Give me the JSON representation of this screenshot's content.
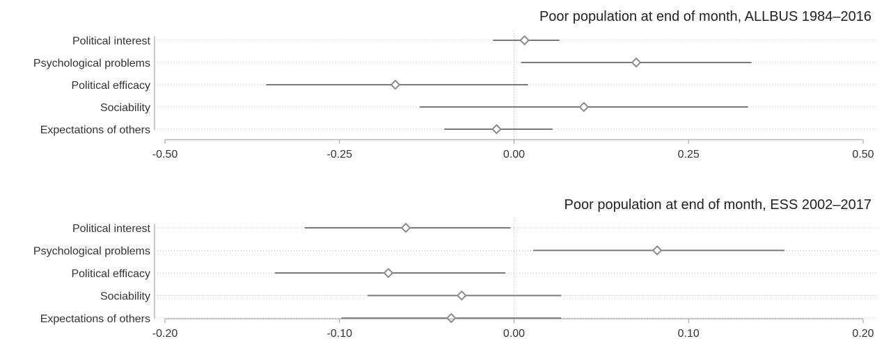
{
  "chart_data": [
    {
      "type": "scatter",
      "title": "Poor population at end of month, ALLBUS 1984–2016",
      "categories": [
        "Political interest",
        "Psychological problems",
        "Political efficacy",
        "Sociability",
        "Expectations of others"
      ],
      "estimate": [
        0.015,
        0.175,
        -0.17,
        0.1,
        -0.025
      ],
      "ci_low": [
        -0.03,
        0.01,
        -0.355,
        -0.135,
        -0.1
      ],
      "ci_high": [
        0.065,
        0.34,
        0.02,
        0.335,
        0.055
      ],
      "xlim": [
        -0.5,
        0.5
      ],
      "xticks": [
        "-0.50",
        "-0.25",
        "0.00",
        "0.25",
        "0.50"
      ],
      "xtick_values": [
        -0.5,
        -0.25,
        0,
        0.25,
        0.5
      ],
      "reference_line": 0,
      "grid": true
    },
    {
      "type": "scatter",
      "title": "Poor population at end of month, ESS 2002–2017",
      "categories": [
        "Political interest",
        "Psychological problems",
        "Political efficacy",
        "Sociability",
        "Expectations of others"
      ],
      "estimate": [
        -0.062,
        0.082,
        -0.072,
        -0.03,
        -0.036
      ],
      "ci_low": [
        -0.12,
        0.011,
        -0.137,
        -0.084,
        -0.099
      ],
      "ci_high": [
        -0.002,
        0.155,
        -0.005,
        0.027,
        0.027
      ],
      "xlim": [
        -0.2,
        0.2
      ],
      "xticks": [
        "-0.20",
        "-0.10",
        "0.00",
        "0.10",
        "0.20"
      ],
      "xtick_values": [
        -0.2,
        -0.1,
        0,
        0.1,
        0.2
      ],
      "reference_line": 0,
      "grid": true
    }
  ]
}
